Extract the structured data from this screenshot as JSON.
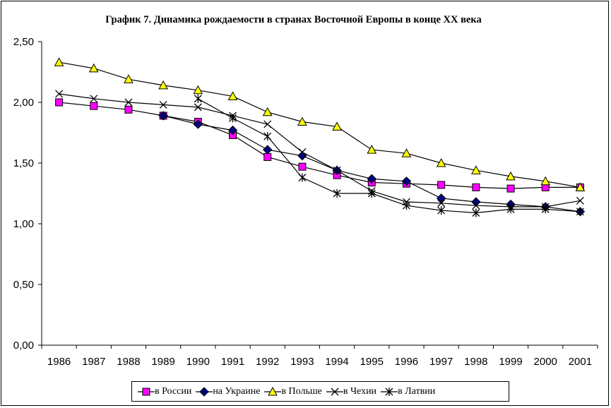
{
  "chart_data": {
    "type": "line",
    "title": "График 7. Динамика рождаемости в странах Восточной Европы в конце XX века",
    "x": [
      "1986",
      "1987",
      "1988",
      "1989",
      "1990",
      "1991",
      "1992",
      "1993",
      "1994",
      "1995",
      "1996",
      "1997",
      "1998",
      "1999",
      "2000",
      "2001"
    ],
    "ylim": [
      0,
      2.5
    ],
    "yticks": [
      0,
      0.5,
      1.0,
      1.5,
      2.0,
      2.5
    ],
    "ytick_labels": [
      "0,00",
      "0,50",
      "1,00",
      "1,50",
      "2,00",
      "2,50"
    ],
    "grid": false,
    "legend_position": "bottom",
    "series": [
      {
        "name": "в России",
        "marker": "square",
        "color": "#ff00ff",
        "values": [
          2.0,
          1.97,
          1.94,
          1.89,
          1.84,
          1.73,
          1.55,
          1.47,
          1.4,
          1.34,
          1.33,
          1.32,
          1.3,
          1.29,
          1.3,
          1.3
        ]
      },
      {
        "name": "на Украине",
        "marker": "diamond",
        "color": "#000080",
        "values": [
          null,
          null,
          null,
          1.89,
          1.82,
          1.77,
          1.61,
          1.56,
          1.44,
          1.37,
          1.35,
          1.21,
          1.18,
          1.16,
          1.14,
          1.1
        ]
      },
      {
        "name": "в Польше",
        "marker": "triangle",
        "color": "#ffff00",
        "values": [
          2.33,
          2.28,
          2.19,
          2.14,
          2.1,
          2.05,
          1.92,
          1.84,
          1.8,
          1.61,
          1.58,
          1.5,
          1.44,
          1.39,
          1.35,
          1.3
        ]
      },
      {
        "name": "в Чехии",
        "marker": "x",
        "color": "#000000",
        "values": [
          2.07,
          2.03,
          2.0,
          1.98,
          1.96,
          1.89,
          1.82,
          1.59,
          1.44,
          1.27,
          1.18,
          1.17,
          1.15,
          1.14,
          1.14,
          1.19
        ]
      },
      {
        "name": "в Латвии",
        "marker": "star",
        "color": "#000000",
        "values": [
          null,
          null,
          null,
          null,
          2.03,
          1.87,
          1.72,
          1.38,
          1.25,
          1.25,
          1.15,
          1.11,
          1.09,
          1.12,
          1.12,
          1.1
        ]
      }
    ]
  }
}
